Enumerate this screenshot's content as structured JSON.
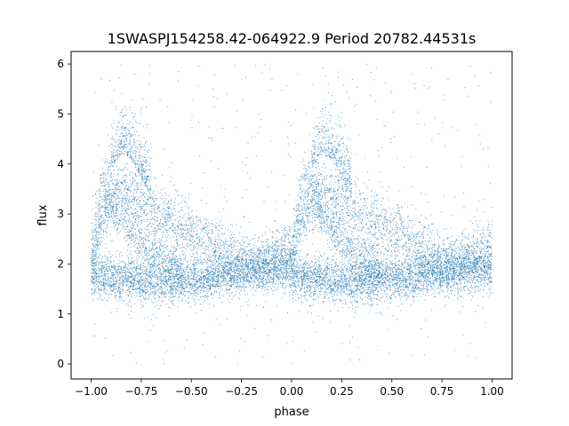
{
  "chart_data": {
    "type": "scatter",
    "title": "1SWASPJ154258.42-064922.9 Period 20782.44531s",
    "xlabel": "phase",
    "ylabel": "flux",
    "xlim": [
      -1.1,
      1.1
    ],
    "ylim": [
      -0.3,
      6.25
    ],
    "xticks": [
      -1.0,
      -0.75,
      -0.5,
      -0.25,
      0.0,
      0.25,
      0.5,
      0.75,
      1.0
    ],
    "xtick_labels": [
      "−1.00",
      "−0.75",
      "−0.50",
      "−0.25",
      "0.00",
      "0.25",
      "0.50",
      "0.75",
      "1.00"
    ],
    "yticks": [
      0,
      1,
      2,
      3,
      4,
      5,
      6
    ],
    "ytick_labels": [
      "0",
      "1",
      "2",
      "3",
      "4",
      "5",
      "6"
    ],
    "grid": false,
    "marker_color": "#1f77b4",
    "x_range": [
      -1.0,
      1.0
    ],
    "period_in_phase": 1.0,
    "series": [
      {
        "branch": "baseline",
        "x": [
          0.0,
          0.1,
          0.2,
          0.3,
          0.4,
          0.5,
          0.6,
          0.7,
          0.8,
          0.9
        ],
        "y": [
          1.78,
          1.72,
          1.68,
          1.66,
          1.66,
          1.68,
          1.72,
          1.8,
          1.9,
          1.92
        ],
        "spread": 0.22
      },
      {
        "branch": "upper_arch",
        "x": [
          0.0,
          0.05,
          0.1,
          0.15,
          0.2,
          0.3,
          0.4,
          0.5,
          0.6,
          0.7,
          0.8,
          0.9,
          1.0
        ],
        "y": [
          2.2,
          3.5,
          3.55,
          3.5,
          3.4,
          3.1,
          2.85,
          2.6,
          2.35,
          2.15,
          1.98,
          2.1,
          2.3
        ],
        "spread": 0.3
      },
      {
        "branch": "lower_arch",
        "x": [
          0.0,
          0.05,
          0.1,
          0.15,
          0.2,
          0.25,
          0.3,
          0.35,
          0.4,
          0.45
        ],
        "y": [
          2.0,
          2.85,
          3.2,
          3.0,
          2.7,
          2.45,
          2.25,
          2.1,
          2.0,
          1.9
        ],
        "spread": 0.22
      },
      {
        "branch": "flare",
        "x": [
          0.1,
          0.15,
          0.2,
          0.25,
          0.3
        ],
        "y": [
          4.2,
          4.5,
          4.4,
          4.0,
          3.6
        ],
        "spread": 0.45
      },
      {
        "branch": "outliers",
        "y_range": [
          0.0,
          6.0
        ]
      }
    ]
  }
}
